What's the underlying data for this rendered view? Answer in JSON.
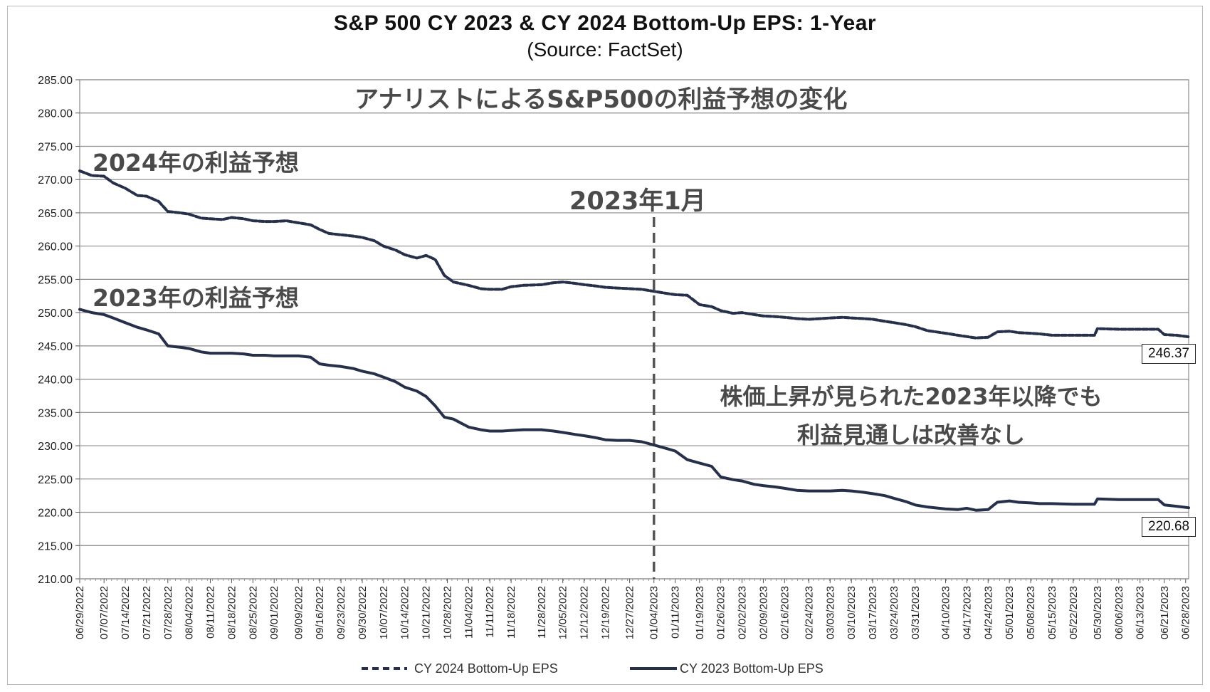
{
  "title": "S&P 500 CY 2023 & CY 2024 Bottom-Up  EPS: 1-Year",
  "subtitle": "(Source: FactSet)",
  "annotations": {
    "headline": "アナリストによるS&P500の利益予想の変化",
    "label_2024": "2024年の利益予想",
    "label_2023": "2023年の利益予想",
    "jan_2023": "2023年1月",
    "note_line1": "株価上昇が見られた2023年以降でも",
    "note_line2": "利益見通しは改善なし"
  },
  "end_labels": {
    "cy2024": "246.37",
    "cy2023": "220.68"
  },
  "legend": {
    "cy2024": "CY 2024 Bottom-Up EPS",
    "cy2023": "CY 2023 Bottom-Up EPS"
  },
  "colors": {
    "series": "#27304a",
    "grid": "#8c8c8c",
    "marker": "#555555"
  },
  "chart_data": {
    "type": "line",
    "title": "S&P 500 CY 2023 & CY 2024 Bottom-Up  EPS: 1-Year",
    "subtitle": "(Source: FactSet)",
    "ylim": [
      210,
      285
    ],
    "yticks": [
      "210.00",
      "215.00",
      "220.00",
      "225.00",
      "230.00",
      "235.00",
      "240.00",
      "245.00",
      "250.00",
      "255.00",
      "260.00",
      "265.00",
      "270.00",
      "275.00",
      "280.00",
      "285.00"
    ],
    "x_ticks": [
      "06/29/2022",
      "07/07/2022",
      "07/14/2022",
      "07/21/2022",
      "07/28/2022",
      "08/04/2022",
      "08/11/2022",
      "08/18/2022",
      "08/25/2022",
      "09/01/2022",
      "09/09/2022",
      "09/16/2022",
      "09/23/2022",
      "09/30/2022",
      "10/07/2022",
      "10/14/2022",
      "10/21/2022",
      "10/28/2022",
      "11/04/2022",
      "11/11/2022",
      "11/18/2022",
      "11/28/2022",
      "12/05/2022",
      "12/12/2022",
      "12/19/2022",
      "12/27/2022",
      "01/04/2023",
      "01/11/2023",
      "01/19/2023",
      "01/26/2023",
      "02/02/2023",
      "02/09/2023",
      "02/16/2023",
      "02/24/2023",
      "03/03/2023",
      "03/10/2023",
      "03/17/2023",
      "03/24/2023",
      "03/31/2023",
      "04/10/2023",
      "04/17/2023",
      "04/24/2023",
      "05/01/2023",
      "05/08/2023",
      "05/15/2023",
      "05/22/2023",
      "05/30/2023",
      "06/06/2023",
      "06/13/2023",
      "06/21/2023",
      "06/28/2023"
    ],
    "x_end": "06/29/2023",
    "vertical_marker": "01/04/2023",
    "grid": true,
    "legend_position": "bottom",
    "series": [
      {
        "name": "CY 2024 Bottom-Up EPS",
        "style": "dashed",
        "points": [
          [
            "06/29/2022",
            271.3
          ],
          [
            "07/03/2022",
            270.6
          ],
          [
            "07/07/2022",
            270.5
          ],
          [
            "07/10/2022",
            269.5
          ],
          [
            "07/14/2022",
            268.7
          ],
          [
            "07/18/2022",
            267.6
          ],
          [
            "07/21/2022",
            267.5
          ],
          [
            "07/25/2022",
            266.7
          ],
          [
            "07/28/2022",
            265.2
          ],
          [
            "08/01/2022",
            265.0
          ],
          [
            "08/04/2022",
            264.8
          ],
          [
            "08/08/2022",
            264.2
          ],
          [
            "08/11/2022",
            264.1
          ],
          [
            "08/15/2022",
            264.0
          ],
          [
            "08/18/2022",
            264.3
          ],
          [
            "08/22/2022",
            264.1
          ],
          [
            "08/25/2022",
            263.8
          ],
          [
            "08/29/2022",
            263.7
          ],
          [
            "09/01/2022",
            263.7
          ],
          [
            "09/05/2022",
            263.8
          ],
          [
            "09/09/2022",
            263.5
          ],
          [
            "09/13/2022",
            263.2
          ],
          [
            "09/16/2022",
            262.5
          ],
          [
            "09/19/2022",
            261.9
          ],
          [
            "09/23/2022",
            261.7
          ],
          [
            "09/27/2022",
            261.5
          ],
          [
            "09/30/2022",
            261.3
          ],
          [
            "10/04/2022",
            260.8
          ],
          [
            "10/07/2022",
            260.0
          ],
          [
            "10/11/2022",
            259.4
          ],
          [
            "10/14/2022",
            258.7
          ],
          [
            "10/18/2022",
            258.2
          ],
          [
            "10/21/2022",
            258.6
          ],
          [
            "10/24/2022",
            258.0
          ],
          [
            "10/27/2022",
            255.6
          ],
          [
            "10/30/2022",
            254.6
          ],
          [
            "11/04/2022",
            254.1
          ],
          [
            "11/08/2022",
            253.6
          ],
          [
            "11/11/2022",
            253.5
          ],
          [
            "11/15/2022",
            253.5
          ],
          [
            "11/18/2022",
            253.9
          ],
          [
            "11/22/2022",
            254.1
          ],
          [
            "11/28/2022",
            254.2
          ],
          [
            "12/02/2022",
            254.5
          ],
          [
            "12/05/2022",
            254.6
          ],
          [
            "12/09/2022",
            254.4
          ],
          [
            "12/12/2022",
            254.2
          ],
          [
            "12/16/2022",
            254.0
          ],
          [
            "12/19/2022",
            253.8
          ],
          [
            "12/23/2022",
            253.7
          ],
          [
            "12/27/2022",
            253.6
          ],
          [
            "12/31/2022",
            253.5
          ],
          [
            "01/04/2023",
            253.2
          ],
          [
            "01/08/2023",
            252.9
          ],
          [
            "01/11/2023",
            252.7
          ],
          [
            "01/15/2023",
            252.6
          ],
          [
            "01/19/2023",
            251.2
          ],
          [
            "01/23/2023",
            250.9
          ],
          [
            "01/26/2023",
            250.3
          ],
          [
            "01/30/2023",
            249.9
          ],
          [
            "02/02/2023",
            250.0
          ],
          [
            "02/06/2023",
            249.7
          ],
          [
            "02/09/2023",
            249.5
          ],
          [
            "02/13/2023",
            249.4
          ],
          [
            "02/16/2023",
            249.3
          ],
          [
            "02/20/2023",
            249.1
          ],
          [
            "02/24/2023",
            249.0
          ],
          [
            "02/28/2023",
            249.1
          ],
          [
            "03/03/2023",
            249.2
          ],
          [
            "03/07/2023",
            249.3
          ],
          [
            "03/10/2023",
            249.2
          ],
          [
            "03/14/2023",
            249.1
          ],
          [
            "03/17/2023",
            249.0
          ],
          [
            "03/21/2023",
            248.7
          ],
          [
            "03/24/2023",
            248.5
          ],
          [
            "03/28/2023",
            248.2
          ],
          [
            "03/31/2023",
            247.9
          ],
          [
            "04/04/2023",
            247.3
          ],
          [
            "04/10/2023",
            246.9
          ],
          [
            "04/14/2023",
            246.6
          ],
          [
            "04/17/2023",
            246.4
          ],
          [
            "04/20/2023",
            246.2
          ],
          [
            "04/24/2023",
            246.3
          ],
          [
            "04/27/2023",
            247.1
          ],
          [
            "05/01/2023",
            247.2
          ],
          [
            "05/04/2023",
            247.0
          ],
          [
            "05/08/2023",
            246.9
          ],
          [
            "05/11/2023",
            246.8
          ],
          [
            "05/15/2023",
            246.6
          ],
          [
            "05/22/2023",
            246.6
          ],
          [
            "05/29/2023",
            246.6
          ],
          [
            "05/30/2023",
            247.6
          ],
          [
            "06/06/2023",
            247.5
          ],
          [
            "06/13/2023",
            247.5
          ],
          [
            "06/19/2023",
            247.5
          ],
          [
            "06/21/2023",
            246.7
          ],
          [
            "06/25/2023",
            246.6
          ],
          [
            "06/29/2023",
            246.37
          ]
        ]
      },
      {
        "name": "CY 2023 Bottom-Up EPS",
        "style": "solid",
        "points": [
          [
            "06/29/2022",
            250.5
          ],
          [
            "07/03/2022",
            250.0
          ],
          [
            "07/07/2022",
            249.7
          ],
          [
            "07/10/2022",
            249.2
          ],
          [
            "07/14/2022",
            248.5
          ],
          [
            "07/18/2022",
            247.8
          ],
          [
            "07/21/2022",
            247.4
          ],
          [
            "07/25/2022",
            246.8
          ],
          [
            "07/28/2022",
            245.0
          ],
          [
            "08/01/2022",
            244.8
          ],
          [
            "08/04/2022",
            244.6
          ],
          [
            "08/08/2022",
            244.1
          ],
          [
            "08/11/2022",
            243.9
          ],
          [
            "08/15/2022",
            243.9
          ],
          [
            "08/18/2022",
            243.9
          ],
          [
            "08/22/2022",
            243.8
          ],
          [
            "08/25/2022",
            243.6
          ],
          [
            "08/29/2022",
            243.6
          ],
          [
            "09/01/2022",
            243.5
          ],
          [
            "09/05/2022",
            243.5
          ],
          [
            "09/09/2022",
            243.5
          ],
          [
            "09/13/2022",
            243.3
          ],
          [
            "09/16/2022",
            242.3
          ],
          [
            "09/19/2022",
            242.1
          ],
          [
            "09/23/2022",
            241.9
          ],
          [
            "09/27/2022",
            241.6
          ],
          [
            "09/30/2022",
            241.2
          ],
          [
            "10/04/2022",
            240.8
          ],
          [
            "10/07/2022",
            240.3
          ],
          [
            "10/11/2022",
            239.6
          ],
          [
            "10/14/2022",
            238.8
          ],
          [
            "10/18/2022",
            238.2
          ],
          [
            "10/21/2022",
            237.4
          ],
          [
            "10/24/2022",
            236.0
          ],
          [
            "10/27/2022",
            234.3
          ],
          [
            "10/30/2022",
            234.0
          ],
          [
            "11/04/2022",
            232.8
          ],
          [
            "11/08/2022",
            232.4
          ],
          [
            "11/11/2022",
            232.2
          ],
          [
            "11/15/2022",
            232.2
          ],
          [
            "11/18/2022",
            232.3
          ],
          [
            "11/22/2022",
            232.4
          ],
          [
            "11/28/2022",
            232.4
          ],
          [
            "12/02/2022",
            232.2
          ],
          [
            "12/05/2022",
            232.0
          ],
          [
            "12/09/2022",
            231.7
          ],
          [
            "12/12/2022",
            231.5
          ],
          [
            "12/16/2022",
            231.2
          ],
          [
            "12/19/2022",
            230.9
          ],
          [
            "12/23/2022",
            230.8
          ],
          [
            "12/27/2022",
            230.8
          ],
          [
            "12/31/2022",
            230.6
          ],
          [
            "01/04/2023",
            230.1
          ],
          [
            "01/08/2023",
            229.6
          ],
          [
            "01/11/2023",
            229.2
          ],
          [
            "01/15/2023",
            227.9
          ],
          [
            "01/19/2023",
            227.4
          ],
          [
            "01/23/2023",
            226.9
          ],
          [
            "01/26/2023",
            225.3
          ],
          [
            "01/30/2023",
            224.9
          ],
          [
            "02/02/2023",
            224.7
          ],
          [
            "02/06/2023",
            224.2
          ],
          [
            "02/09/2023",
            224.0
          ],
          [
            "02/13/2023",
            223.8
          ],
          [
            "02/16/2023",
            223.6
          ],
          [
            "02/20/2023",
            223.3
          ],
          [
            "02/24/2023",
            223.2
          ],
          [
            "02/28/2023",
            223.2
          ],
          [
            "03/03/2023",
            223.2
          ],
          [
            "03/07/2023",
            223.3
          ],
          [
            "03/10/2023",
            223.2
          ],
          [
            "03/14/2023",
            223.0
          ],
          [
            "03/17/2023",
            222.8
          ],
          [
            "03/21/2023",
            222.5
          ],
          [
            "03/24/2023",
            222.1
          ],
          [
            "03/28/2023",
            221.6
          ],
          [
            "03/31/2023",
            221.1
          ],
          [
            "04/04/2023",
            220.8
          ],
          [
            "04/10/2023",
            220.5
          ],
          [
            "04/14/2023",
            220.4
          ],
          [
            "04/17/2023",
            220.6
          ],
          [
            "04/20/2023",
            220.3
          ],
          [
            "04/24/2023",
            220.4
          ],
          [
            "04/27/2023",
            221.5
          ],
          [
            "05/01/2023",
            221.7
          ],
          [
            "05/04/2023",
            221.5
          ],
          [
            "05/08/2023",
            221.4
          ],
          [
            "05/11/2023",
            221.3
          ],
          [
            "05/15/2023",
            221.3
          ],
          [
            "05/22/2023",
            221.2
          ],
          [
            "05/29/2023",
            221.2
          ],
          [
            "05/30/2023",
            222.0
          ],
          [
            "06/06/2023",
            221.9
          ],
          [
            "06/13/2023",
            221.9
          ],
          [
            "06/19/2023",
            221.9
          ],
          [
            "06/21/2023",
            221.1
          ],
          [
            "06/25/2023",
            220.9
          ],
          [
            "06/29/2023",
            220.68
          ]
        ]
      }
    ]
  }
}
